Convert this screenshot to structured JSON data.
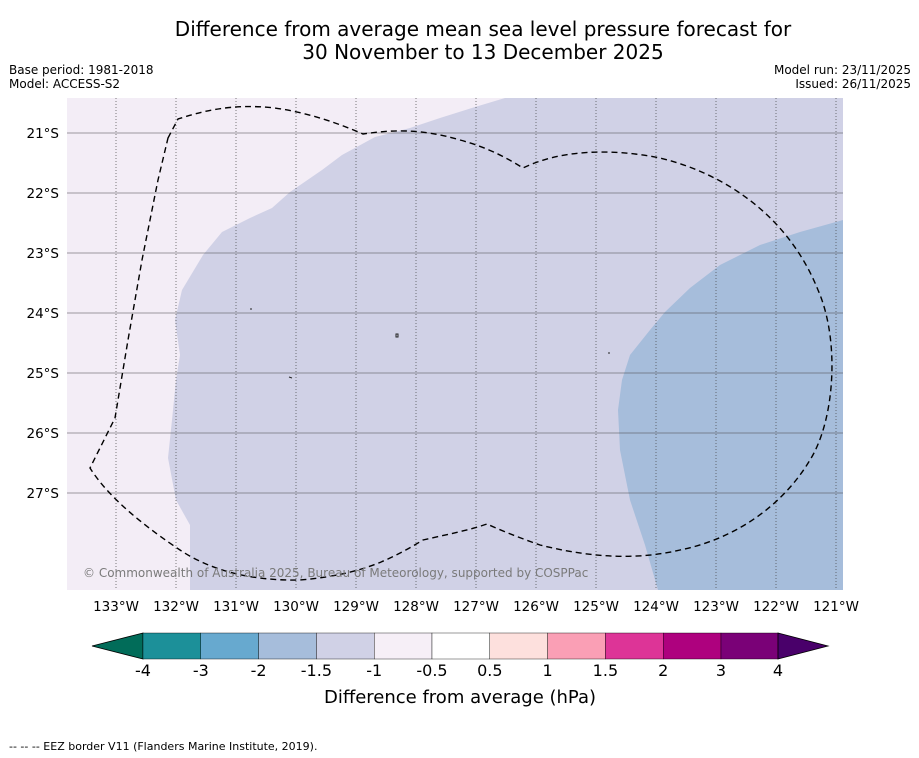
{
  "title": {
    "line1": "Difference from average mean sea level pressure forecast for",
    "line2": "30 November to 13 December 2025"
  },
  "meta": {
    "base_period": "Base period: 1981-2018",
    "model": "Model: ACCESS-S2",
    "model_run": "Model run: 23/11/2025",
    "issued": "Issued: 26/11/2025"
  },
  "map": {
    "lat_labels": [
      "21°S",
      "22°S",
      "23°S",
      "24°S",
      "25°S",
      "26°S",
      "27°S"
    ],
    "lon_labels": [
      "133°W",
      "132°W",
      "131°W",
      "130°W",
      "129°W",
      "128°W",
      "127°W",
      "126°W",
      "125°W",
      "124°W",
      "123°W",
      "122°W",
      "121°W"
    ],
    "copyright": "© Commonwealth of Australia 2025, Bureau of Meteorology, supported by COSPPac",
    "colors": {
      "band_neg05_neg1": "#f3edf6",
      "band_neg1_neg15": "#d0d1e6",
      "band_neg15_neg2": "#a6bddb"
    }
  },
  "colorbar": {
    "ticks": [
      "-4",
      "-3",
      "-2",
      "-1.5",
      "-1",
      "-0.5",
      "0.5",
      "1",
      "1.5",
      "2",
      "3",
      "4"
    ],
    "colors": [
      "#016c59",
      "#1c9099",
      "#67a9cf",
      "#a6bddb",
      "#d0d1e6",
      "#f6eff7",
      "#ffffff",
      "#fde0dd",
      "#fa9fb5",
      "#dd3497",
      "#ae017e",
      "#7a0177",
      "#49006a"
    ],
    "label": "Difference from average (hPa)"
  },
  "footer": {
    "legend_line": "--  --  -- EEZ border V11 (Flanders Marine Institute, 2019)."
  }
}
